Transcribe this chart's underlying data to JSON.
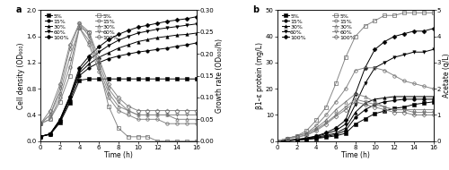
{
  "panel_a": {
    "xlabel": "Time (h)",
    "ylabel_left": "Cell density (OD₆₀₀)",
    "ylabel_right": "Growth rate (OD₆₀₀/h)",
    "xlim": [
      0,
      16
    ],
    "ylim_left": [
      0,
      2.0
    ],
    "ylim_right": [
      0.0,
      0.3
    ],
    "yticks_left": [
      0.0,
      0.4,
      0.8,
      1.2,
      1.6,
      2.0
    ],
    "yticks_right": [
      0.0,
      0.05,
      0.1,
      0.15,
      0.2,
      0.25,
      0.3
    ],
    "xticks": [
      0,
      2,
      4,
      6,
      8,
      10,
      12,
      14,
      16
    ],
    "cell_density": {
      "5%": [
        0.07,
        0.1,
        0.28,
        0.58,
        0.93,
        0.95,
        0.95,
        0.95,
        0.95,
        0.95,
        0.95,
        0.95,
        0.95,
        0.95,
        0.95,
        0.95,
        0.95
      ],
      "15%": [
        0.07,
        0.11,
        0.3,
        0.62,
        1.0,
        1.12,
        1.2,
        1.26,
        1.3,
        1.33,
        1.36,
        1.38,
        1.4,
        1.42,
        1.45,
        1.47,
        1.5
      ],
      "30%": [
        0.07,
        0.11,
        0.32,
        0.65,
        1.04,
        1.18,
        1.28,
        1.35,
        1.42,
        1.47,
        1.52,
        1.55,
        1.58,
        1.6,
        1.62,
        1.63,
        1.65
      ],
      "60%": [
        0.07,
        0.11,
        0.32,
        0.67,
        1.08,
        1.24,
        1.36,
        1.46,
        1.54,
        1.6,
        1.65,
        1.68,
        1.71,
        1.73,
        1.75,
        1.77,
        1.79
      ],
      "100%": [
        0.07,
        0.11,
        0.33,
        0.68,
        1.12,
        1.3,
        1.44,
        1.55,
        1.63,
        1.69,
        1.74,
        1.77,
        1.8,
        1.83,
        1.85,
        1.87,
        1.9
      ]
    },
    "growth_rate": {
      "5%": [
        0.04,
        0.05,
        0.09,
        0.15,
        0.26,
        0.25,
        0.17,
        0.08,
        0.03,
        0.01,
        0.01,
        0.01,
        0.0,
        0.0,
        0.0,
        0.0,
        0.0
      ],
      "15%": [
        0.04,
        0.05,
        0.1,
        0.17,
        0.26,
        0.22,
        0.16,
        0.1,
        0.07,
        0.06,
        0.05,
        0.05,
        0.05,
        0.04,
        0.04,
        0.04,
        0.04
      ],
      "30%": [
        0.04,
        0.06,
        0.11,
        0.19,
        0.26,
        0.23,
        0.17,
        0.11,
        0.08,
        0.07,
        0.06,
        0.06,
        0.06,
        0.06,
        0.05,
        0.05,
        0.05
      ],
      "60%": [
        0.04,
        0.06,
        0.12,
        0.21,
        0.27,
        0.24,
        0.18,
        0.12,
        0.09,
        0.07,
        0.06,
        0.06,
        0.06,
        0.06,
        0.06,
        0.06,
        0.06
      ],
      "100%": [
        0.04,
        0.07,
        0.13,
        0.22,
        0.27,
        0.25,
        0.19,
        0.13,
        0.1,
        0.08,
        0.07,
        0.07,
        0.07,
        0.07,
        0.07,
        0.07,
        0.07
      ]
    },
    "time": [
      0,
      1,
      2,
      3,
      4,
      5,
      6,
      7,
      8,
      9,
      10,
      11,
      12,
      13,
      14,
      15,
      16
    ]
  },
  "panel_b": {
    "xlabel": "Time (h)",
    "ylabel_left": "β1–ε protein (mg/L)",
    "ylabel_right": "Acetate (g/L)",
    "xlim": [
      0,
      16
    ],
    "ylim_left": [
      0,
      50
    ],
    "ylim_right": [
      0,
      5
    ],
    "yticks_left": [
      0,
      10,
      20,
      30,
      40,
      50
    ],
    "yticks_right": [
      0,
      1,
      2,
      3,
      4,
      5
    ],
    "xticks": [
      0,
      2,
      4,
      6,
      8,
      10,
      12,
      14,
      16
    ],
    "protein": {
      "5%": [
        0,
        0.2,
        0.4,
        0.6,
        1.0,
        1.5,
        2.0,
        3.0,
        6.5,
        8.5,
        10.5,
        11.5,
        12.5,
        13.0,
        14.0,
        14.5,
        15.0
      ],
      "15%": [
        0,
        0.2,
        0.5,
        0.8,
        1.2,
        1.8,
        2.5,
        4.0,
        9.0,
        12.0,
        14.0,
        15.0,
        15.5,
        16.0,
        16.0,
        16.0,
        16.0
      ],
      "30%": [
        0,
        0.2,
        0.5,
        0.9,
        1.5,
        2.2,
        3.0,
        5.0,
        11.0,
        14.5,
        16.0,
        16.5,
        17.0,
        17.0,
        17.0,
        17.0,
        17.0
      ],
      "60%": [
        0,
        0.3,
        0.6,
        1.0,
        1.8,
        2.8,
        4.0,
        6.5,
        14.0,
        22.0,
        28.0,
        30.0,
        32.0,
        33.0,
        34.0,
        34.0,
        35.0
      ],
      "100%": [
        0,
        0.3,
        0.7,
        1.2,
        2.0,
        3.2,
        5.0,
        8.0,
        18.0,
        28.0,
        35.0,
        38.0,
        40.0,
        41.0,
        42.0,
        42.0,
        43.0
      ]
    },
    "acetate": {
      "5%": [
        0,
        0.1,
        0.2,
        0.4,
        0.8,
        1.3,
        2.2,
        3.2,
        4.0,
        4.4,
        4.6,
        4.8,
        4.8,
        4.9,
        4.9,
        4.9,
        4.9
      ],
      "15%": [
        0,
        0.1,
        0.2,
        0.3,
        0.6,
        1.0,
        1.5,
        2.0,
        2.7,
        2.8,
        2.8,
        2.7,
        2.5,
        2.3,
        2.2,
        2.1,
        2.0
      ],
      "30%": [
        0,
        0.1,
        0.2,
        0.3,
        0.5,
        0.8,
        1.2,
        1.5,
        1.8,
        1.7,
        1.5,
        1.3,
        1.2,
        1.2,
        1.2,
        1.2,
        1.2
      ],
      "60%": [
        0,
        0.1,
        0.15,
        0.25,
        0.45,
        0.7,
        1.0,
        1.3,
        1.6,
        1.5,
        1.4,
        1.3,
        1.2,
        1.2,
        1.1,
        1.1,
        1.1
      ],
      "100%": [
        0,
        0.1,
        0.15,
        0.22,
        0.4,
        0.65,
        0.95,
        1.2,
        1.5,
        1.4,
        1.3,
        1.2,
        1.1,
        1.1,
        1.0,
        1.0,
        1.0
      ]
    },
    "time": [
      0,
      1,
      2,
      3,
      4,
      5,
      6,
      7,
      8,
      9,
      10,
      11,
      12,
      13,
      14,
      15,
      16
    ]
  },
  "markers": {
    "5%": "s",
    "15%": "o",
    "30%": "^",
    "60%": "v",
    "100%": "D"
  },
  "do_labels": [
    "5%",
    "15%",
    "30%",
    "60%",
    "100%"
  ],
  "linewidth": 0.7,
  "markersize": 2.5,
  "fontsize_label": 5.5,
  "fontsize_tick": 5.0,
  "fontsize_legend": 4.5,
  "fontsize_panel": 7
}
